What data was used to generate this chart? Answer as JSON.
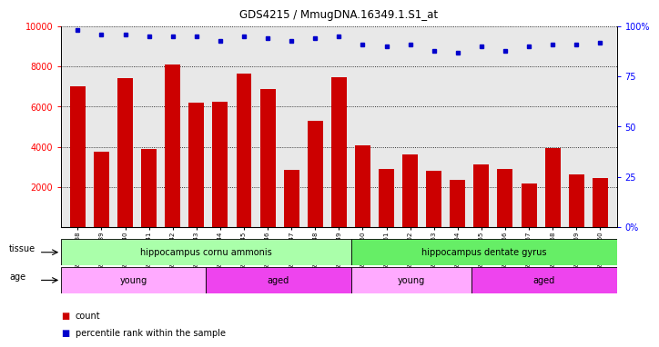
{
  "title": "GDS4215 / MmugDNA.16349.1.S1_at",
  "samples": [
    "GSM297138",
    "GSM297139",
    "GSM297140",
    "GSM297141",
    "GSM297142",
    "GSM297143",
    "GSM297144",
    "GSM297145",
    "GSM297146",
    "GSM297147",
    "GSM297148",
    "GSM297149",
    "GSM297150",
    "GSM297151",
    "GSM297152",
    "GSM297153",
    "GSM297154",
    "GSM297155",
    "GSM297156",
    "GSM297157",
    "GSM297158",
    "GSM297159",
    "GSM297160"
  ],
  "counts": [
    7000,
    3750,
    7400,
    3900,
    8100,
    6200,
    6250,
    7650,
    6900,
    2850,
    5300,
    7450,
    4050,
    2900,
    3600,
    2800,
    2350,
    3100,
    2900,
    2150,
    3950,
    2600,
    2450
  ],
  "percentile_ranks": [
    98,
    96,
    96,
    95,
    95,
    95,
    93,
    95,
    94,
    93,
    94,
    95,
    91,
    90,
    91,
    88,
    87,
    90,
    88,
    90,
    91,
    91,
    92
  ],
  "bar_color": "#cc0000",
  "dot_color": "#0000cc",
  "ylim_left": [
    0,
    10000
  ],
  "ylim_right": [
    0,
    100
  ],
  "yticks_left": [
    2000,
    4000,
    6000,
    8000,
    10000
  ],
  "yticks_right": [
    0,
    25,
    50,
    75,
    100
  ],
  "tissue_groups": [
    {
      "label": "hippocampus cornu ammonis",
      "start": 0,
      "end": 11,
      "color": "#aaffaa"
    },
    {
      "label": "hippocampus dentate gyrus",
      "start": 12,
      "end": 22,
      "color": "#66ee66"
    }
  ],
  "age_groups": [
    {
      "label": "young",
      "start": 0,
      "end": 5,
      "color": "#ffaaff"
    },
    {
      "label": "aged",
      "start": 6,
      "end": 11,
      "color": "#ee44ee"
    },
    {
      "label": "young",
      "start": 12,
      "end": 16,
      "color": "#ffaaff"
    },
    {
      "label": "aged",
      "start": 17,
      "end": 22,
      "color": "#ee44ee"
    }
  ],
  "background_color": "#ffffff",
  "plot_bg_color": "#e8e8e8",
  "legend_items": [
    {
      "color": "#cc0000",
      "label": "count"
    },
    {
      "color": "#0000cc",
      "label": "percentile rank within the sample"
    }
  ]
}
